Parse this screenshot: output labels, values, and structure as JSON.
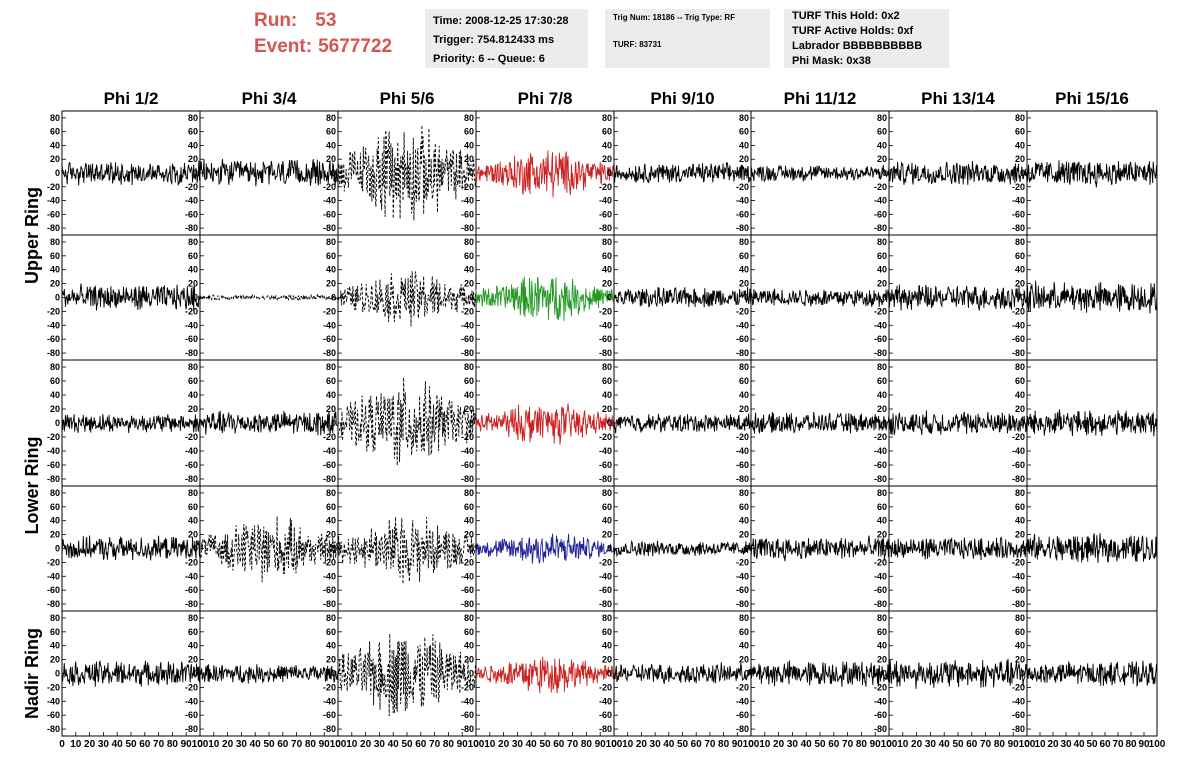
{
  "header": {
    "run_label": "Run:",
    "run_value": "53",
    "event_label": "Event:",
    "event_value": "5677722",
    "accent_color": "#d9534f"
  },
  "info_boxes": {
    "time": "Time: 2008-12-25 17:30:28",
    "trigger": "Trigger: 754.812433 ms",
    "priority": "Priority: 6 -- Queue: 6",
    "trig_num": "Trig Num: 18186 -- Trig Type: RF",
    "turf": "TURF: 83731",
    "turf_this_hold": "TURF This Hold: 0x2",
    "turf_active_holds": "TURF Active Holds: 0xf",
    "labrador": "Labrador BBBBBBBBBB",
    "phi_mask": "Phi Mask: 0x38"
  },
  "chart_data": {
    "type": "line",
    "description_of_grid": "5 rows x 8 columns of waveform panels",
    "columns": [
      "Phi 1/2",
      "Phi 3/4",
      "Phi 5/6",
      "Phi 7/8",
      "Phi 9/10",
      "Phi 11/12",
      "Phi 13/14",
      "Phi 15/16"
    ],
    "ring_labels": [
      {
        "label": "Upper Ring",
        "rows": [
          0,
          1
        ]
      },
      {
        "label": "Lower Ring",
        "rows": [
          2,
          3
        ]
      },
      {
        "label": "Nadir Ring",
        "rows": [
          4
        ]
      }
    ],
    "xlim": [
      0,
      100
    ],
    "ylim": [
      -90,
      90
    ],
    "x_ticks": [
      0,
      10,
      20,
      30,
      40,
      50,
      60,
      70,
      80,
      90,
      100
    ],
    "x_tick_labels": [
      "0",
      "10",
      "20",
      "30",
      "40",
      "50",
      "60",
      "70",
      "80",
      "90",
      "100"
    ],
    "y_ticks": [
      80,
      60,
      40,
      20,
      0,
      -20,
      -40,
      -60,
      -80
    ],
    "y_tick_labels": [
      "80",
      "60",
      "40",
      "20",
      "0",
      "-20",
      "-40",
      "-60",
      "-80"
    ],
    "series_colors": {
      "normal": "#000000",
      "red": "#cc2222",
      "green": "#229922",
      "blue": "#222299"
    },
    "panels": [
      [
        {
          "amp": 14,
          "style": "solid",
          "color": "normal"
        },
        {
          "amp": 16,
          "style": "solid",
          "color": "normal"
        },
        {
          "amp": 55,
          "style": "dashed",
          "color": "normal",
          "envelope": true
        },
        {
          "amp": 28,
          "style": "solid",
          "color": "red",
          "envelope": true
        },
        {
          "amp": 12,
          "style": "solid",
          "color": "normal"
        },
        {
          "amp": 10,
          "style": "solid",
          "color": "normal"
        },
        {
          "amp": 14,
          "style": "solid",
          "color": "normal"
        },
        {
          "amp": 16,
          "style": "solid",
          "color": "normal"
        }
      ],
      [
        {
          "amp": 15,
          "style": "solid",
          "color": "normal"
        },
        {
          "amp": 3,
          "style": "dashed",
          "color": "normal"
        },
        {
          "amp": 30,
          "style": "dashed",
          "color": "normal",
          "envelope": true
        },
        {
          "amp": 26,
          "style": "solid",
          "color": "green",
          "envelope": true
        },
        {
          "amp": 12,
          "style": "solid",
          "color": "normal"
        },
        {
          "amp": 11,
          "style": "solid",
          "color": "normal"
        },
        {
          "amp": 15,
          "style": "solid",
          "color": "normal"
        },
        {
          "amp": 18,
          "style": "solid",
          "color": "normal"
        }
      ],
      [
        {
          "amp": 11,
          "style": "solid",
          "color": "normal"
        },
        {
          "amp": 14,
          "style": "solid",
          "color": "normal"
        },
        {
          "amp": 48,
          "style": "dashed",
          "color": "normal",
          "envelope": true
        },
        {
          "amp": 24,
          "style": "solid",
          "color": "red",
          "envelope": true
        },
        {
          "amp": 11,
          "style": "solid",
          "color": "normal"
        },
        {
          "amp": 12,
          "style": "solid",
          "color": "normal"
        },
        {
          "amp": 14,
          "style": "solid",
          "color": "normal"
        },
        {
          "amp": 15,
          "style": "solid",
          "color": "normal"
        }
      ],
      [
        {
          "amp": 14,
          "style": "solid",
          "color": "normal"
        },
        {
          "amp": 36,
          "style": "dashed",
          "color": "normal",
          "envelope": true
        },
        {
          "amp": 38,
          "style": "dashed",
          "color": "normal",
          "envelope": true
        },
        {
          "amp": 20,
          "style": "solid",
          "color": "blue",
          "envelope": true
        },
        {
          "amp": 9,
          "style": "solid",
          "color": "normal"
        },
        {
          "amp": 14,
          "style": "solid",
          "color": "normal"
        },
        {
          "amp": 13,
          "style": "solid",
          "color": "normal"
        },
        {
          "amp": 17,
          "style": "solid",
          "color": "normal"
        }
      ],
      [
        {
          "amp": 15,
          "style": "solid",
          "color": "normal"
        },
        {
          "amp": 11,
          "style": "solid",
          "color": "normal"
        },
        {
          "amp": 52,
          "style": "dashed",
          "color": "normal",
          "envelope": true
        },
        {
          "amp": 22,
          "style": "solid",
          "color": "red",
          "envelope": true
        },
        {
          "amp": 12,
          "style": "solid",
          "color": "normal"
        },
        {
          "amp": 15,
          "style": "solid",
          "color": "normal"
        },
        {
          "amp": 17,
          "style": "solid",
          "color": "normal"
        },
        {
          "amp": 14,
          "style": "solid",
          "color": "normal"
        }
      ]
    ]
  }
}
